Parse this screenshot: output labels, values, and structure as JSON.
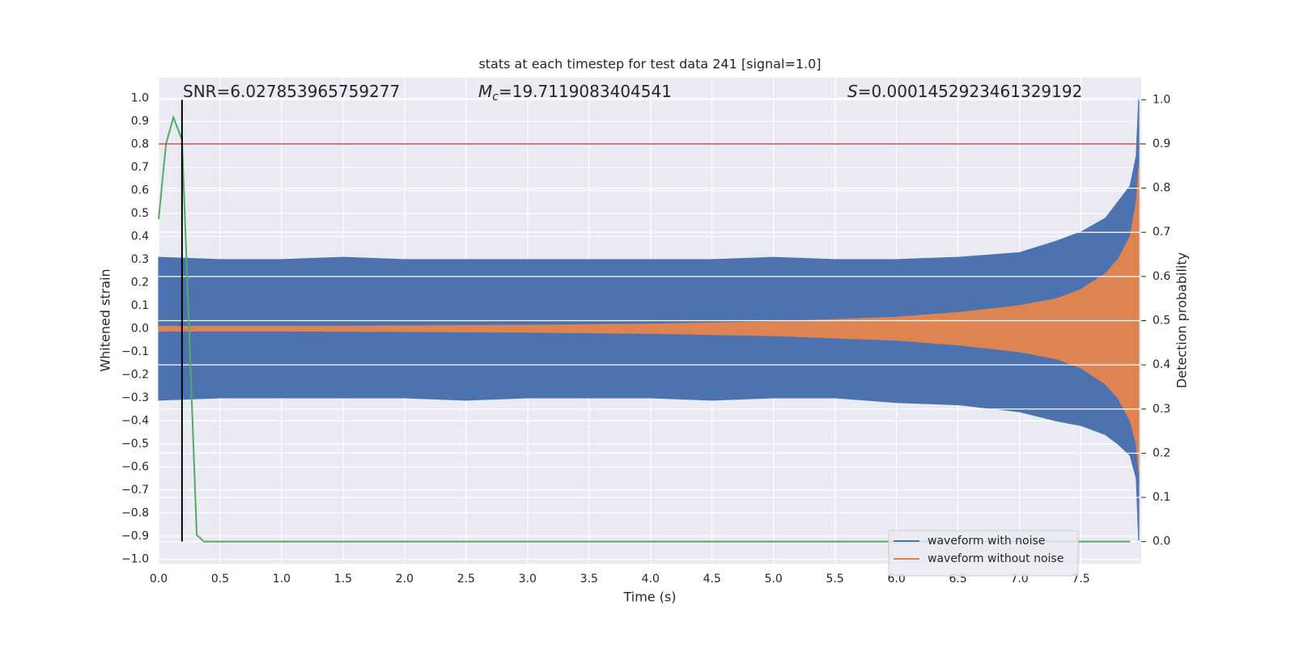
{
  "chart_data": {
    "type": "line",
    "title": "stats at each timestep for test data 241 [signal=1.0]",
    "x_label": "Time (s)",
    "y_label": "Whitened strain",
    "y2_label": "Detection probability",
    "xlim": [
      0,
      7.99
    ],
    "ylim": [
      -1.02,
      1.09
    ],
    "y2lim": [
      -0.05,
      1.05
    ],
    "xticks": [
      {
        "value": 0,
        "label": "0.0"
      },
      0.5,
      {
        "value": 1,
        "label": "1.0"
      },
      1.5,
      {
        "value": 2,
        "label": "2.0"
      },
      2.5,
      {
        "value": 3,
        "label": "3.0"
      },
      3.5,
      {
        "value": 4,
        "label": "4.0"
      },
      4.5,
      {
        "value": 5,
        "label": "5.0"
      },
      5.5,
      {
        "value": 6,
        "label": "6.0"
      },
      6.5,
      {
        "value": 7,
        "label": "7.0"
      },
      7.5
    ],
    "yticks": [
      {
        "value": -1,
        "label": "−1.0"
      },
      {
        "value": -0.9,
        "label": "−0.9"
      },
      {
        "value": -0.8,
        "label": "−0.8"
      },
      {
        "value": -0.7,
        "label": "−0.7"
      },
      {
        "value": -0.6,
        "label": "−0.6"
      },
      {
        "value": -0.5,
        "label": "−0.5"
      },
      {
        "value": -0.4,
        "label": "−0.4"
      },
      {
        "value": -0.3,
        "label": "−0.3"
      },
      {
        "value": -0.2,
        "label": "−0.2"
      },
      {
        "value": -0.1,
        "label": "−0.1"
      },
      {
        "value": 0,
        "label": "0.0"
      },
      0.1,
      0.2,
      0.3,
      0.4,
      0.5,
      0.6,
      0.7,
      0.8,
      0.9,
      {
        "value": 1,
        "label": "1.0"
      }
    ],
    "y2ticks": [
      {
        "value": 0,
        "label": "0.0"
      },
      0.1,
      0.2,
      0.3,
      0.4,
      0.5,
      0.6,
      0.7,
      0.8,
      0.9,
      {
        "value": 1,
        "label": "1.0"
      }
    ],
    "grid": true,
    "legend": "lower right",
    "series": [
      {
        "name": "waveform with noise",
        "color": "#4c72b0",
        "x": [
          0,
          0.5,
          1,
          1.5,
          2,
          2.5,
          3,
          3.5,
          4,
          4.5,
          5,
          5.5,
          6,
          6.5,
          7,
          7.3,
          7.5,
          7.7,
          7.8,
          7.9,
          7.95,
          7.97
        ],
        "high": [
          0.31,
          0.3,
          0.3,
          0.31,
          0.3,
          0.3,
          0.3,
          0.3,
          0.3,
          0.3,
          0.31,
          0.3,
          0.3,
          0.31,
          0.33,
          0.38,
          0.42,
          0.48,
          0.55,
          0.62,
          0.75,
          1.0
        ],
        "low": [
          -0.31,
          -0.3,
          -0.3,
          -0.3,
          -0.3,
          -0.31,
          -0.3,
          -0.3,
          -0.3,
          -0.31,
          -0.3,
          -0.3,
          -0.32,
          -0.33,
          -0.36,
          -0.4,
          -0.42,
          -0.46,
          -0.5,
          -0.55,
          -0.65,
          -0.92
        ]
      },
      {
        "name": "waveform without noise",
        "color": "#dd8452",
        "x": [
          0,
          1,
          2,
          3,
          4,
          5,
          6,
          6.5,
          7,
          7.3,
          7.5,
          7.7,
          7.8,
          7.9,
          7.95,
          7.97
        ],
        "high": [
          0.01,
          0.01,
          0.012,
          0.015,
          0.02,
          0.03,
          0.05,
          0.07,
          0.1,
          0.13,
          0.17,
          0.24,
          0.3,
          0.4,
          0.55,
          0.7
        ],
        "low": [
          -0.01,
          -0.01,
          -0.012,
          -0.015,
          -0.02,
          -0.03,
          -0.05,
          -0.07,
          -0.1,
          -0.13,
          -0.17,
          -0.24,
          -0.3,
          -0.4,
          -0.5,
          -0.62
        ]
      },
      {
        "color": "#55a868",
        "axis": "y2",
        "x": [
          0,
          0.06,
          0.12,
          0.19,
          0.31,
          0.37,
          7.9
        ],
        "values": [
          0.73,
          0.9,
          0.96,
          0.91,
          0.015,
          0,
          0
        ]
      }
    ],
    "hlines": [
      {
        "value": 0.9,
        "axis": "y2",
        "color": "#c44e52"
      }
    ],
    "vlines": [
      {
        "value": 0.19,
        "axis": "y2",
        "from": 0,
        "to": 1,
        "color": "#000000"
      }
    ],
    "annotations": [
      {
        "symbol": "SNR",
        "italic": false,
        "text": "=6.027853965759277"
      },
      {
        "symbol": "M",
        "subscript": "c",
        "italic": true,
        "text": "=19.7119083404541"
      },
      {
        "symbol": "S",
        "italic": true,
        "text": "=0.0001452923461329192"
      }
    ]
  }
}
